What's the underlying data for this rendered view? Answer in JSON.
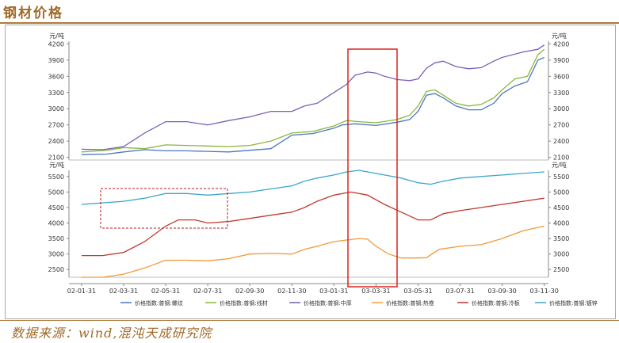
{
  "header": {
    "title": "钢材价格"
  },
  "source": {
    "text": "数据来源：wind,混沌天成研究院"
  },
  "chart_data": {
    "type": "line",
    "x_ticks": [
      "02-01-31",
      "02-03-31",
      "02-05-31",
      "02-07-31",
      "02-09-30",
      "02-11-30",
      "03-01-31",
      "03-03-31",
      "03-05-31",
      "03-07-31",
      "03-09-30",
      "03-11-30"
    ],
    "upper_panel": {
      "unit_label": "元/吨",
      "yticks": [
        2100,
        2400,
        2700,
        3000,
        3300,
        3600,
        3900,
        4200
      ],
      "ylim": [
        2050,
        4250
      ],
      "series": [
        {
          "name": "价格指数:普钢:螺纹",
          "color": "#4a76c0",
          "points": [
            [
              0,
              2150
            ],
            [
              0.6,
              2160
            ],
            [
              1,
              2200
            ],
            [
              1.5,
              2240
            ],
            [
              2,
              2220
            ],
            [
              2.5,
              2220
            ],
            [
              3,
              2210
            ],
            [
              3.5,
              2200
            ],
            [
              4,
              2230
            ],
            [
              4.5,
              2260
            ],
            [
              5,
              2510
            ],
            [
              5.5,
              2540
            ],
            [
              6,
              2640
            ],
            [
              6.2,
              2700
            ],
            [
              6.5,
              2720
            ],
            [
              7,
              2690
            ],
            [
              7.5,
              2750
            ],
            [
              7.8,
              2800
            ],
            [
              8,
              2950
            ],
            [
              8.2,
              3250
            ],
            [
              8.4,
              3280
            ],
            [
              8.6,
              3200
            ],
            [
              8.9,
              3050
            ],
            [
              9.2,
              2980
            ],
            [
              9.5,
              2980
            ],
            [
              9.8,
              3100
            ],
            [
              10,
              3280
            ],
            [
              10.3,
              3420
            ],
            [
              10.6,
              3500
            ],
            [
              10.85,
              3900
            ],
            [
              11,
              3950
            ]
          ]
        },
        {
          "name": "价格指数:普钢:线材",
          "color": "#8ab63a",
          "points": [
            [
              0,
              2200
            ],
            [
              0.6,
              2230
            ],
            [
              1,
              2280
            ],
            [
              1.5,
              2260
            ],
            [
              2,
              2330
            ],
            [
              2.5,
              2320
            ],
            [
              3,
              2310
            ],
            [
              3.5,
              2300
            ],
            [
              4,
              2320
            ],
            [
              4.5,
              2400
            ],
            [
              5,
              2550
            ],
            [
              5.5,
              2580
            ],
            [
              6,
              2680
            ],
            [
              6.3,
              2780
            ],
            [
              6.6,
              2760
            ],
            [
              7,
              2740
            ],
            [
              7.5,
              2800
            ],
            [
              7.8,
              2880
            ],
            [
              8,
              3050
            ],
            [
              8.2,
              3320
            ],
            [
              8.4,
              3350
            ],
            [
              8.6,
              3250
            ],
            [
              8.9,
              3100
            ],
            [
              9.2,
              3050
            ],
            [
              9.5,
              3080
            ],
            [
              9.8,
              3200
            ],
            [
              10,
              3350
            ],
            [
              10.3,
              3550
            ],
            [
              10.6,
              3600
            ],
            [
              10.85,
              4000
            ],
            [
              11,
              4100
            ]
          ]
        },
        {
          "name": "价格指数:普钢:中厚",
          "color": "#7b5fb8",
          "points": [
            [
              0,
              2250
            ],
            [
              0.5,
              2240
            ],
            [
              1,
              2300
            ],
            [
              1.5,
              2550
            ],
            [
              2,
              2760
            ],
            [
              2.5,
              2760
            ],
            [
              3,
              2700
            ],
            [
              3.5,
              2780
            ],
            [
              4,
              2850
            ],
            [
              4.5,
              2950
            ],
            [
              5,
              2950
            ],
            [
              5.3,
              3050
            ],
            [
              5.6,
              3100
            ],
            [
              6,
              3300
            ],
            [
              6.3,
              3450
            ],
            [
              6.5,
              3620
            ],
            [
              6.8,
              3680
            ],
            [
              7,
              3660
            ],
            [
              7.2,
              3600
            ],
            [
              7.5,
              3540
            ],
            [
              7.8,
              3520
            ],
            [
              8,
              3550
            ],
            [
              8.2,
              3750
            ],
            [
              8.4,
              3850
            ],
            [
              8.6,
              3880
            ],
            [
              8.9,
              3780
            ],
            [
              9.2,
              3740
            ],
            [
              9.5,
              3760
            ],
            [
              9.8,
              3880
            ],
            [
              10,
              3950
            ],
            [
              10.5,
              4050
            ],
            [
              10.85,
              4100
            ],
            [
              11,
              4180
            ]
          ]
        }
      ]
    },
    "lower_panel": {
      "unit_label": "元/吨",
      "yticks": [
        2500,
        3000,
        3500,
        4000,
        4500,
        5000,
        5500
      ],
      "ylim": [
        2250,
        5700
      ],
      "series": [
        {
          "name": "价格指数:普钢:热卷",
          "color": "#f09a3a",
          "points": [
            [
              0,
              2250
            ],
            [
              0.5,
              2250
            ],
            [
              1,
              2350
            ],
            [
              1.5,
              2550
            ],
            [
              2,
              2800
            ],
            [
              2.5,
              2800
            ],
            [
              3,
              2780
            ],
            [
              3.5,
              2850
            ],
            [
              4,
              3000
            ],
            [
              4.5,
              3020
            ],
            [
              5,
              3000
            ],
            [
              5.3,
              3150
            ],
            [
              5.6,
              3250
            ],
            [
              6,
              3400
            ],
            [
              6.3,
              3450
            ],
            [
              6.6,
              3500
            ],
            [
              6.8,
              3480
            ],
            [
              7,
              3250
            ],
            [
              7.3,
              3000
            ],
            [
              7.6,
              2870
            ],
            [
              8,
              2870
            ],
            [
              8.2,
              2880
            ],
            [
              8.5,
              3150
            ],
            [
              9,
              3250
            ],
            [
              9.5,
              3300
            ],
            [
              10,
              3500
            ],
            [
              10.5,
              3750
            ],
            [
              11,
              3900
            ]
          ]
        },
        {
          "name": "价格指数:普钢:冷板",
          "color": "#c0392b",
          "points": [
            [
              0,
              2950
            ],
            [
              0.5,
              2950
            ],
            [
              1,
              3050
            ],
            [
              1.5,
              3400
            ],
            [
              2,
              3900
            ],
            [
              2.3,
              4100
            ],
            [
              2.7,
              4100
            ],
            [
              3,
              4000
            ],
            [
              3.5,
              4050
            ],
            [
              4,
              4150
            ],
            [
              4.5,
              4250
            ],
            [
              5,
              4350
            ],
            [
              5.3,
              4500
            ],
            [
              5.6,
              4700
            ],
            [
              6,
              4900
            ],
            [
              6.4,
              5000
            ],
            [
              6.8,
              4900
            ],
            [
              7.2,
              4600
            ],
            [
              7.6,
              4350
            ],
            [
              8,
              4100
            ],
            [
              8.3,
              4100
            ],
            [
              8.6,
              4300
            ],
            [
              9,
              4400
            ],
            [
              9.5,
              4500
            ],
            [
              10,
              4600
            ],
            [
              10.5,
              4700
            ],
            [
              11,
              4800
            ]
          ]
        },
        {
          "name": "价格指数:普钢:镀锌",
          "color": "#3aa6c8",
          "points": [
            [
              0,
              4600
            ],
            [
              0.5,
              4650
            ],
            [
              1,
              4700
            ],
            [
              1.5,
              4800
            ],
            [
              2,
              4950
            ],
            [
              2.5,
              4950
            ],
            [
              3,
              4900
            ],
            [
              3.5,
              4950
            ],
            [
              4,
              5000
            ],
            [
              4.5,
              5100
            ],
            [
              5,
              5200
            ],
            [
              5.3,
              5350
            ],
            [
              5.6,
              5450
            ],
            [
              6,
              5550
            ],
            [
              6.3,
              5650
            ],
            [
              6.6,
              5700
            ],
            [
              6.8,
              5650
            ],
            [
              7.2,
              5550
            ],
            [
              7.6,
              5450
            ],
            [
              8,
              5300
            ],
            [
              8.3,
              5250
            ],
            [
              8.6,
              5350
            ],
            [
              9,
              5450
            ],
            [
              9.5,
              5500
            ],
            [
              10,
              5550
            ],
            [
              10.5,
              5600
            ],
            [
              11,
              5650
            ]
          ]
        }
      ]
    },
    "legend": {
      "placement": "bottom"
    }
  }
}
